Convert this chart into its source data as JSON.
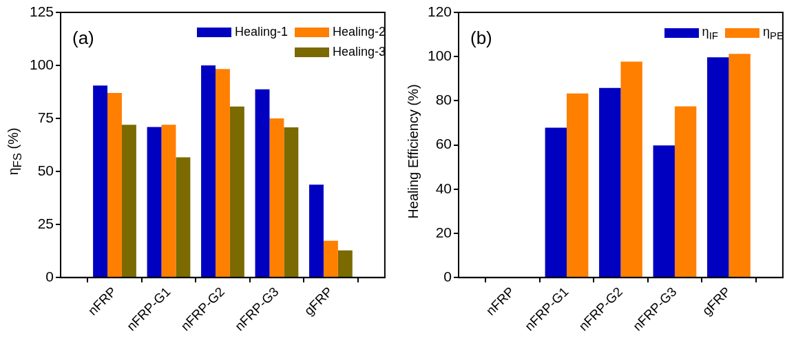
{
  "chart_data": [
    {
      "type": "bar",
      "ylabel": "η$_{FS}$ (%)",
      "annotations": [
        "(a)"
      ],
      "categories": [
        "nFRP",
        "nFRP-G1",
        "nFRP-G2",
        "nFRP-G3",
        "gFRP"
      ],
      "series": [
        {
          "name": "Healing-1",
          "color": "#0000c0",
          "values": [
            90.5,
            71,
            100,
            88.7,
            43.8
          ]
        },
        {
          "name": "Healing-2",
          "color": "#ff7f00",
          "values": [
            87,
            72,
            98.3,
            75,
            17.3
          ]
        },
        {
          "name": "Healing-3",
          "color": "#7a6a00",
          "values": [
            72,
            56.7,
            80.6,
            70.8,
            12.8
          ]
        }
      ],
      "ylim": [
        0,
        125
      ],
      "yticks": [
        0,
        25,
        50,
        75,
        100,
        125
      ],
      "grid": false,
      "legend": "top right"
    },
    {
      "type": "bar",
      "ylabel": "Healing Efficiency (%)",
      "annotations": [
        "(b)"
      ],
      "categories": [
        "nFRP",
        "nFRP-G1",
        "nFRP-G2",
        "nFRP-G3",
        "gFRP"
      ],
      "series": [
        {
          "name": "η$_{IF}$",
          "color": "#0000c0",
          "values": [
            null,
            67.8,
            85.8,
            59.8,
            99.7
          ]
        },
        {
          "name": "η$_{PE}$",
          "color": "#ff7f00",
          "values": [
            null,
            83.3,
            97.7,
            77.5,
            101.2
          ]
        }
      ],
      "ylim": [
        0,
        120
      ],
      "yticks": [
        0,
        20,
        40,
        60,
        80,
        100,
        120
      ],
      "grid": false,
      "legend": "top right"
    }
  ]
}
